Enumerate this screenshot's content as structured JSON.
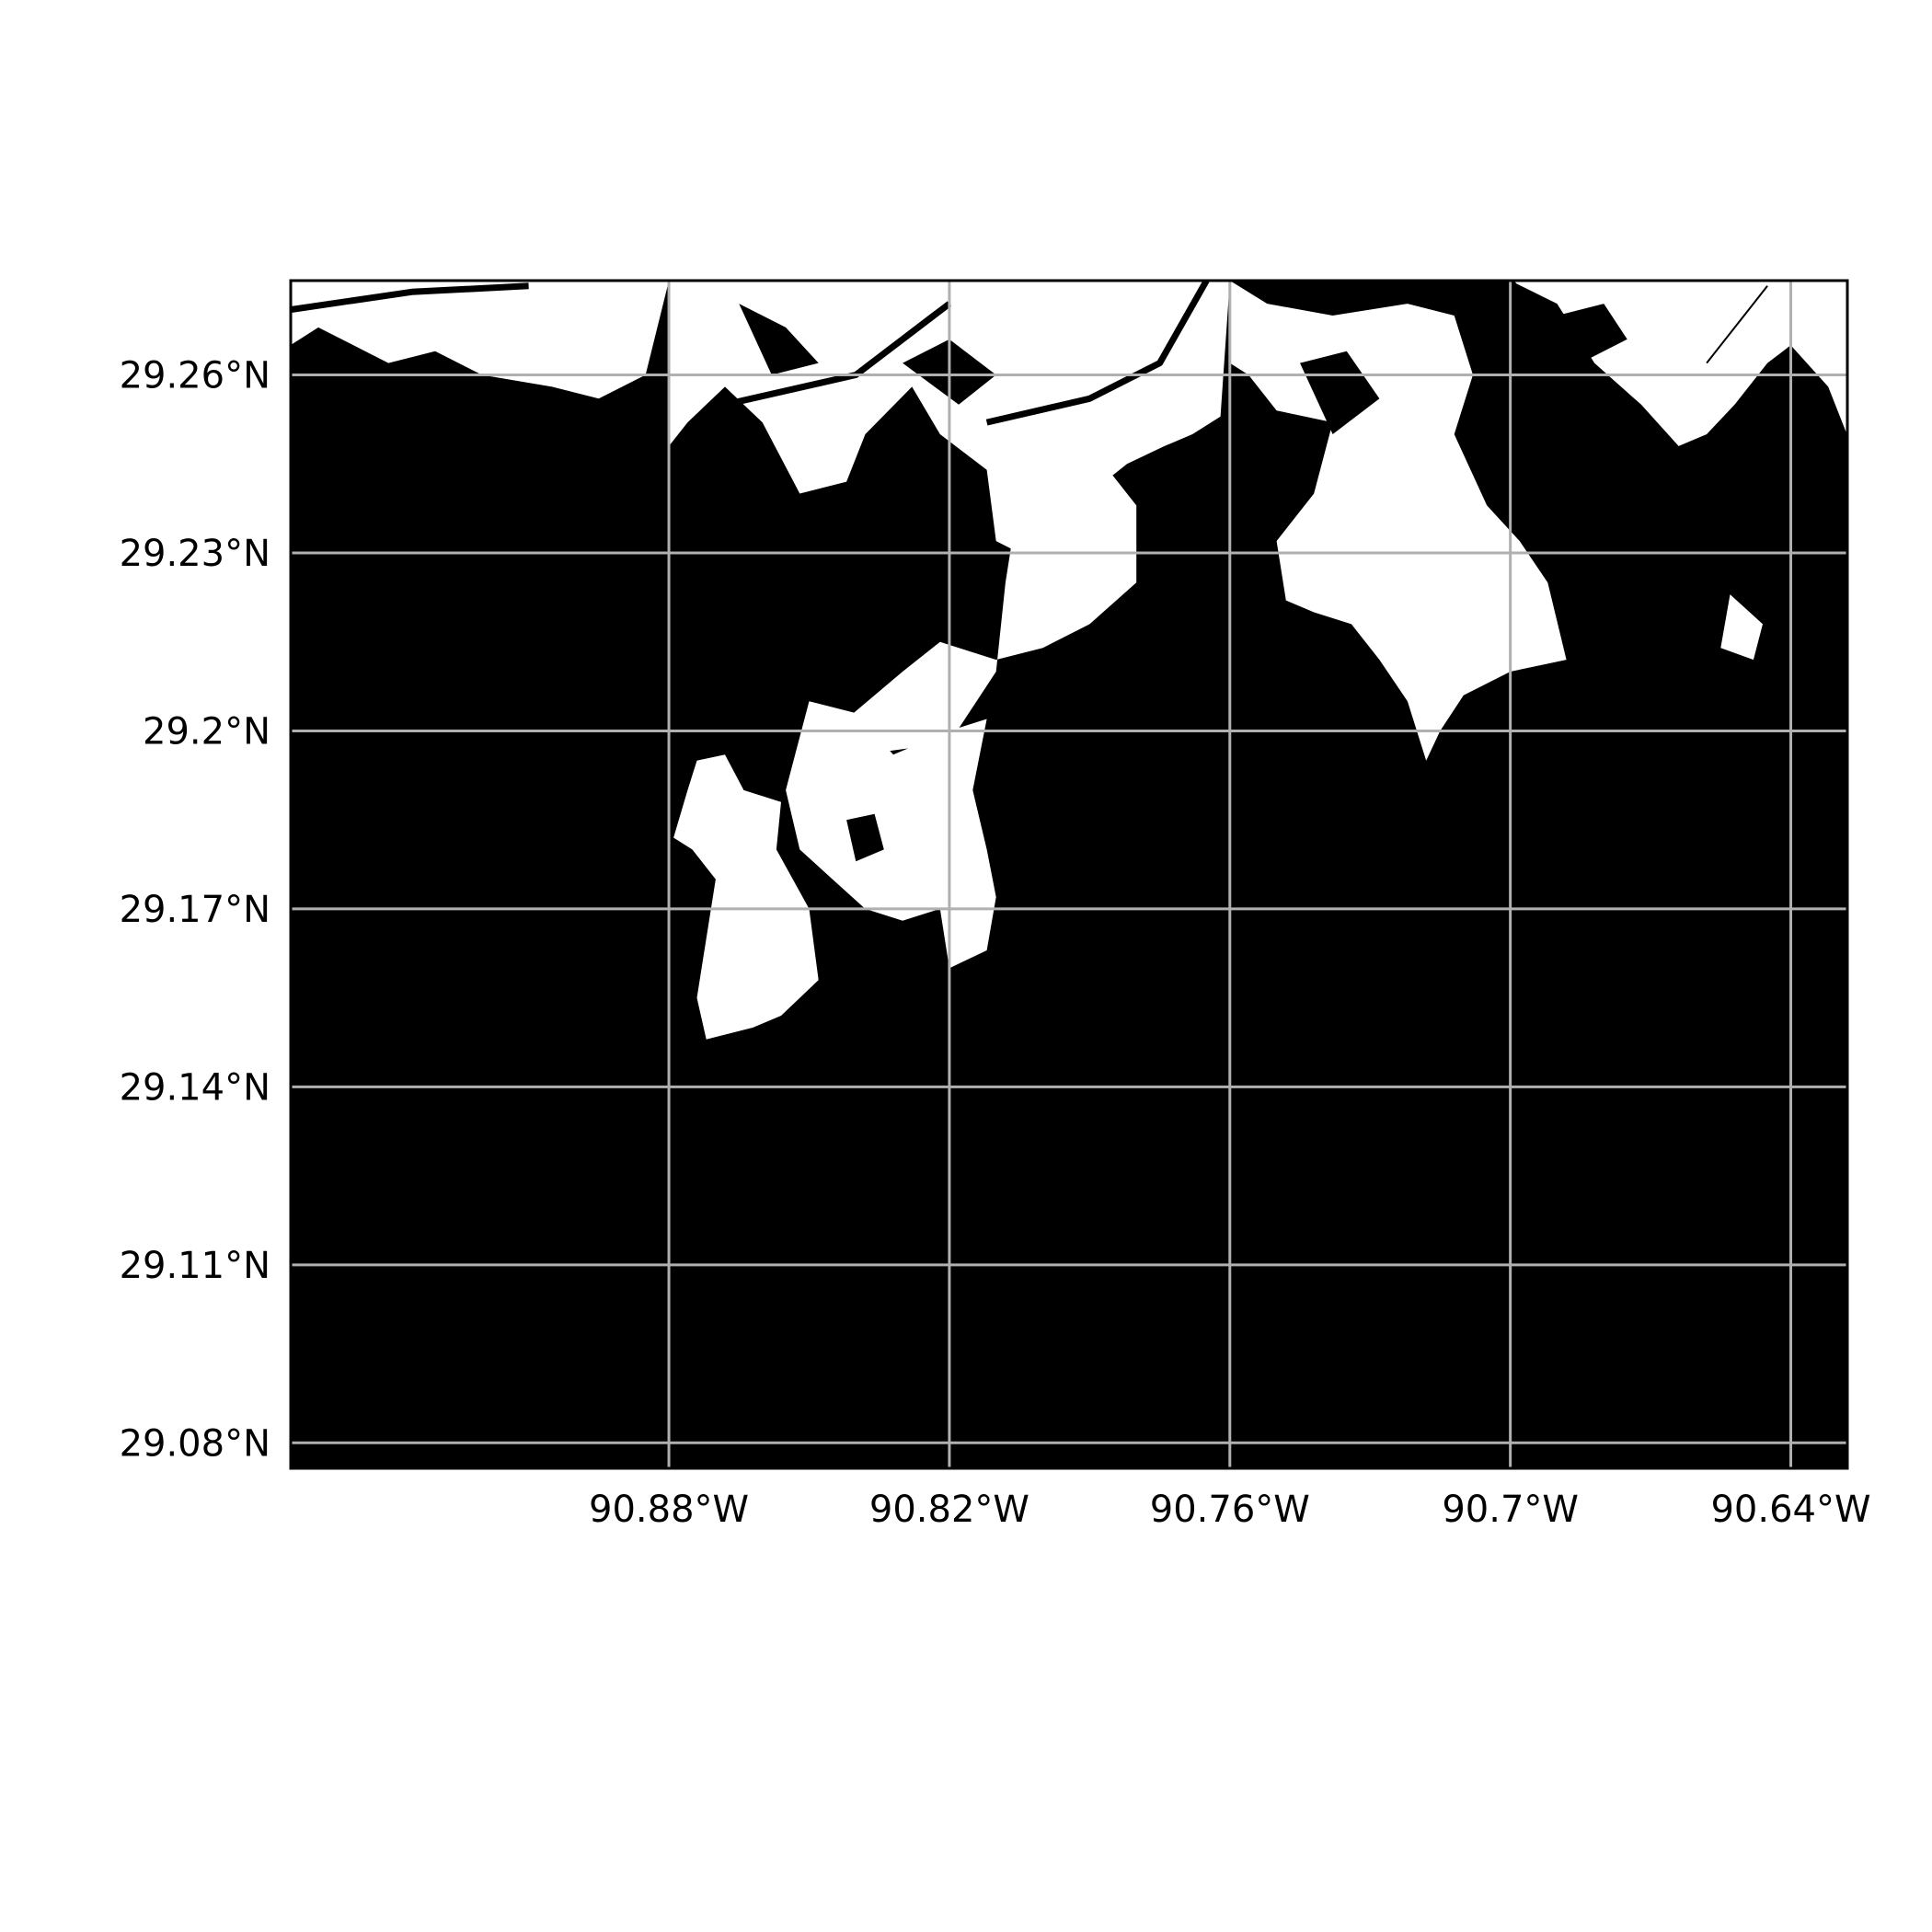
{
  "map": {
    "type": "binary land-water mask",
    "colors": {
      "water": "#000000",
      "land": "#ffffff",
      "grid": "#b0b0b0",
      "frame": "#000000",
      "background": "#ffffff"
    },
    "projection": "PlateCarree",
    "extent": {
      "lon_min": -90.9609,
      "lon_max": -90.6279,
      "lat_min": 29.0757,
      "lat_max": 29.2759
    },
    "grid": true,
    "lon_ticks": [
      {
        "value": -90.88,
        "label": "90.88°W"
      },
      {
        "value": -90.82,
        "label": "90.82°W"
      },
      {
        "value": -90.76,
        "label": "90.76°W"
      },
      {
        "value": -90.7,
        "label": "90.7°W"
      },
      {
        "value": -90.64,
        "label": "90.64°W"
      }
    ],
    "lat_ticks": [
      {
        "value": 29.26,
        "label": "29.26°N"
      },
      {
        "value": 29.23,
        "label": "29.23°N"
      },
      {
        "value": 29.2,
        "label": "29.2°N"
      },
      {
        "value": 29.17,
        "label": "29.17°N"
      },
      {
        "value": 29.14,
        "label": "29.14°N"
      },
      {
        "value": 29.11,
        "label": "29.11°N"
      },
      {
        "value": 29.08,
        "label": "29.08°N"
      }
    ],
    "land_polygons": [
      {
        "name": "north-west-shore",
        "coords": [
          [
            -90.961,
            29.2759
          ],
          [
            -90.961,
            29.265
          ],
          [
            -90.955,
            29.268
          ],
          [
            -90.94,
            29.262
          ],
          [
            -90.93,
            29.264
          ],
          [
            -90.92,
            29.26
          ],
          [
            -90.905,
            29.258
          ],
          [
            -90.895,
            29.256
          ],
          [
            -90.885,
            29.26
          ],
          [
            -90.88,
            29.2759
          ]
        ]
      },
      {
        "name": "north-central-marsh",
        "coords": [
          [
            -90.88,
            29.2759
          ],
          [
            -90.88,
            29.248
          ],
          [
            -90.876,
            29.252
          ],
          [
            -90.868,
            29.258
          ],
          [
            -90.86,
            29.252
          ],
          [
            -90.852,
            29.24
          ],
          [
            -90.842,
            29.242
          ],
          [
            -90.838,
            29.25
          ],
          [
            -90.828,
            29.258
          ],
          [
            -90.822,
            29.25
          ],
          [
            -90.812,
            29.244
          ],
          [
            -90.81,
            29.232
          ],
          [
            -90.8,
            29.228
          ],
          [
            -90.79,
            29.24
          ],
          [
            -90.782,
            29.245
          ],
          [
            -90.774,
            29.248
          ],
          [
            -90.768,
            29.25
          ],
          [
            -90.762,
            29.253
          ],
          [
            -90.76,
            29.2759
          ]
        ]
      },
      {
        "name": "central-peninsula",
        "coords": [
          [
            -90.8,
            29.248
          ],
          [
            -90.788,
            29.246
          ],
          [
            -90.78,
            29.238
          ],
          [
            -90.78,
            29.225
          ],
          [
            -90.79,
            29.218
          ],
          [
            -90.8,
            29.214
          ],
          [
            -90.81,
            29.212
          ],
          [
            -90.822,
            29.215
          ],
          [
            -90.83,
            29.21
          ],
          [
            -90.845,
            29.2
          ],
          [
            -90.848,
            29.195
          ],
          [
            -90.82,
            29.198
          ],
          [
            -90.81,
            29.21
          ],
          [
            -90.808,
            29.225
          ],
          [
            -90.805,
            29.24
          ]
        ]
      },
      {
        "name": "west-island-group",
        "coords": [
          [
            -90.85,
            29.205
          ],
          [
            -90.84,
            29.203
          ],
          [
            -90.832,
            29.196
          ],
          [
            -90.82,
            29.2
          ],
          [
            -90.812,
            29.202
          ],
          [
            -90.815,
            29.19
          ],
          [
            -90.812,
            29.18
          ],
          [
            -90.81,
            29.172
          ],
          [
            -90.812,
            29.163
          ],
          [
            -90.82,
            29.16
          ],
          [
            -90.822,
            29.17
          ],
          [
            -90.83,
            29.168
          ],
          [
            -90.838,
            29.17
          ],
          [
            -90.845,
            29.175
          ],
          [
            -90.852,
            29.18
          ],
          [
            -90.855,
            29.19
          ]
        ]
      },
      {
        "name": "south-west-island",
        "coords": [
          [
            -90.874,
            29.195
          ],
          [
            -90.868,
            29.196
          ],
          [
            -90.864,
            29.19
          ],
          [
            -90.856,
            29.188
          ],
          [
            -90.857,
            29.18
          ],
          [
            -90.85,
            29.17
          ],
          [
            -90.848,
            29.158
          ],
          [
            -90.856,
            29.152
          ],
          [
            -90.862,
            29.15
          ],
          [
            -90.872,
            29.148
          ],
          [
            -90.874,
            29.155
          ],
          [
            -90.872,
            29.165
          ],
          [
            -90.87,
            29.175
          ],
          [
            -90.875,
            29.18
          ],
          [
            -90.879,
            29.182
          ],
          [
            -90.876,
            29.19
          ]
        ]
      },
      {
        "name": "north-east-marsh-a",
        "coords": [
          [
            -90.76,
            29.2759
          ],
          [
            -90.752,
            29.272
          ],
          [
            -90.738,
            29.27
          ],
          [
            -90.722,
            29.272
          ],
          [
            -90.712,
            29.27
          ],
          [
            -90.708,
            29.26
          ],
          [
            -90.712,
            29.25
          ],
          [
            -90.705,
            29.238
          ],
          [
            -90.698,
            29.232
          ],
          [
            -90.692,
            29.225
          ],
          [
            -90.688,
            29.212
          ],
          [
            -90.7,
            29.21
          ],
          [
            -90.71,
            29.206
          ],
          [
            -90.715,
            29.2
          ],
          [
            -90.718,
            29.195
          ],
          [
            -90.722,
            29.205
          ],
          [
            -90.728,
            29.212
          ],
          [
            -90.734,
            29.218
          ],
          [
            -90.742,
            29.22
          ],
          [
            -90.748,
            29.222
          ],
          [
            -90.75,
            29.232
          ],
          [
            -90.742,
            29.24
          ],
          [
            -90.738,
            29.252
          ],
          [
            -90.75,
            29.254
          ],
          [
            -90.756,
            29.26
          ],
          [
            -90.76,
            29.262
          ]
        ]
      },
      {
        "name": "north-east-marsh-b",
        "coords": [
          [
            -90.7,
            29.2759
          ],
          [
            -90.69,
            29.272
          ],
          [
            -90.682,
            29.262
          ],
          [
            -90.672,
            29.255
          ],
          [
            -90.664,
            29.248
          ],
          [
            -90.658,
            29.25
          ],
          [
            -90.652,
            29.255
          ],
          [
            -90.645,
            29.262
          ],
          [
            -90.64,
            29.265
          ],
          [
            -90.632,
            29.258
          ],
          [
            -90.628,
            29.25
          ],
          [
            -90.628,
            29.2759
          ]
        ]
      },
      {
        "name": "east-islet",
        "coords": [
          [
            -90.653,
            29.223
          ],
          [
            -90.646,
            29.218
          ],
          [
            -90.648,
            29.212
          ],
          [
            -90.655,
            29.214
          ]
        ]
      }
    ],
    "water_patches": [
      {
        "name": "bay-notch-west",
        "coords": [
          [
            -90.865,
            29.272
          ],
          [
            -90.855,
            29.268
          ],
          [
            -90.848,
            29.262
          ],
          [
            -90.858,
            29.26
          ]
        ]
      },
      {
        "name": "bay-notch-central",
        "coords": [
          [
            -90.83,
            29.262
          ],
          [
            -90.82,
            29.266
          ],
          [
            -90.81,
            29.26
          ],
          [
            -90.818,
            29.255
          ]
        ]
      },
      {
        "name": "pond-east",
        "coords": [
          [
            -90.745,
            29.262
          ],
          [
            -90.735,
            29.264
          ],
          [
            -90.728,
            29.256
          ],
          [
            -90.738,
            29.25
          ]
        ]
      },
      {
        "name": "pond-north-east",
        "coords": [
          [
            -90.69,
            29.27
          ],
          [
            -90.68,
            29.272
          ],
          [
            -90.675,
            29.266
          ],
          [
            -90.685,
            29.262
          ]
        ]
      },
      {
        "name": "pond-west-island",
        "coords": [
          [
            -90.842,
            29.185
          ],
          [
            -90.836,
            29.186
          ],
          [
            -90.834,
            29.18
          ],
          [
            -90.84,
            29.178
          ]
        ]
      }
    ],
    "channels": [
      {
        "name": "channel-west",
        "coords": [
          [
            -90.961,
            29.271
          ],
          [
            -90.935,
            29.274
          ],
          [
            -90.91,
            29.275
          ]
        ]
      },
      {
        "name": "channel-central",
        "coords": [
          [
            -90.868,
            29.255
          ],
          [
            -90.84,
            29.26
          ],
          [
            -90.82,
            29.272
          ]
        ]
      },
      {
        "name": "channel-diagonal",
        "coords": [
          [
            -90.812,
            29.252
          ],
          [
            -90.79,
            29.256
          ],
          [
            -90.775,
            29.262
          ],
          [
            -90.765,
            29.2759
          ]
        ]
      },
      {
        "name": "channel-bayou",
        "coords": [
          [
            -90.7,
            29.2759
          ],
          [
            -90.688,
            29.262
          ],
          [
            -90.675,
            29.246
          ],
          [
            -90.67,
            29.235
          ]
        ]
      }
    ],
    "annotations": [
      {
        "kind": "road",
        "coords": [
          [
            -90.658,
            29.262
          ],
          [
            -90.645,
            29.275
          ]
        ]
      }
    ]
  }
}
